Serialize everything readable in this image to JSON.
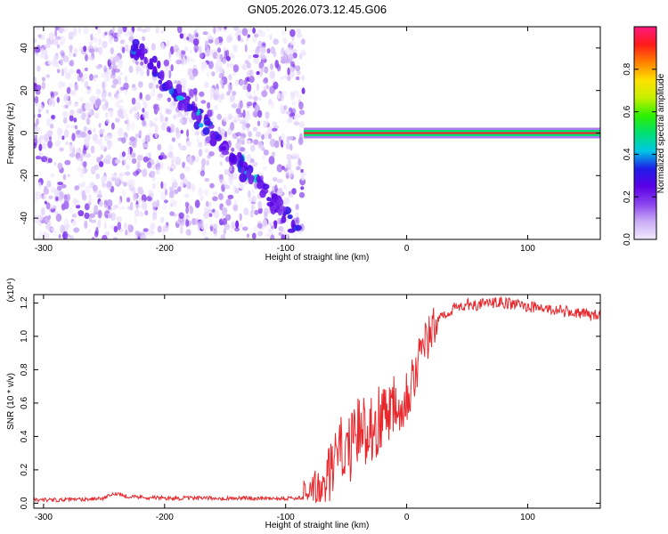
{
  "title": "GN05.2026.073.12.45.G06",
  "chart_data": [
    {
      "type": "heatmap",
      "xlabel": "Height of straight line (km)",
      "ylabel": "Frequency (Hz)",
      "xlim": [
        -308,
        160
      ],
      "ylim": [
        -50,
        50
      ],
      "xticks": [
        -300,
        -200,
        -100,
        0,
        100
      ],
      "yticks": [
        -40,
        -20,
        0,
        20,
        40
      ],
      "colorbar": {
        "label": "Normalized spectral amplitude",
        "range": [
          0,
          1
        ],
        "ticks": [
          0.0,
          0.2,
          0.4,
          0.6,
          0.8
        ],
        "tick_labels": [
          "0.0",
          "0.2",
          "0.4",
          "0.6",
          "0.8"
        ],
        "colors": [
          "#f2eaff",
          "#cbaef5",
          "#8a44ee",
          "#5a00e6",
          "#1e1ee8",
          "#00c8e6",
          "#00e070",
          "#30f000",
          "#c8f000",
          "#ffe000",
          "#ff8000",
          "#ff1a1a",
          "#ff1a80"
        ]
      },
      "features": {
        "noise_region_x": [
          -308,
          -85
        ],
        "diagonal_streak": {
          "x": [
            -225,
            -90
          ],
          "y": [
            40,
            -45
          ]
        },
        "carrier_line_x": [
          -85,
          160
        ],
        "carrier_frequency": 0
      }
    },
    {
      "type": "line",
      "xlabel": "Height of straight line (km)",
      "ylabel": "SNR (10 * v/v)",
      "scale_label": "(x10⁴)",
      "xlim": [
        -308,
        160
      ],
      "ylim": [
        -0.03,
        1.25
      ],
      "xticks": [
        -300,
        -200,
        -100,
        0,
        100
      ],
      "yticks": [
        0.0,
        0.2,
        0.4,
        0.6,
        0.8,
        1.0,
        1.2
      ],
      "series": [
        {
          "color": "#e8282d",
          "x": [
            -308,
            -280,
            -250,
            -240,
            -230,
            -200,
            -150,
            -100,
            -80,
            -70,
            -65,
            -60,
            -55,
            -50,
            -45,
            -40,
            -35,
            -30,
            -25,
            -20,
            -15,
            -10,
            -5,
            0,
            5,
            10,
            15,
            20,
            25,
            30,
            40,
            50,
            60,
            70,
            80,
            90,
            100,
            110,
            120,
            130,
            140,
            150,
            160
          ],
          "values": [
            0.02,
            0.02,
            0.03,
            0.06,
            0.04,
            0.03,
            0.03,
            0.03,
            0.03,
            0.08,
            0.15,
            0.25,
            0.32,
            0.33,
            0.34,
            0.42,
            0.45,
            0.46,
            0.48,
            0.52,
            0.58,
            0.62,
            0.62,
            0.66,
            0.75,
            0.85,
            0.95,
            1.02,
            1.08,
            1.13,
            1.17,
            1.19,
            1.19,
            1.2,
            1.2,
            1.19,
            1.18,
            1.17,
            1.16,
            1.15,
            1.14,
            1.13,
            1.12
          ]
        }
      ]
    }
  ]
}
